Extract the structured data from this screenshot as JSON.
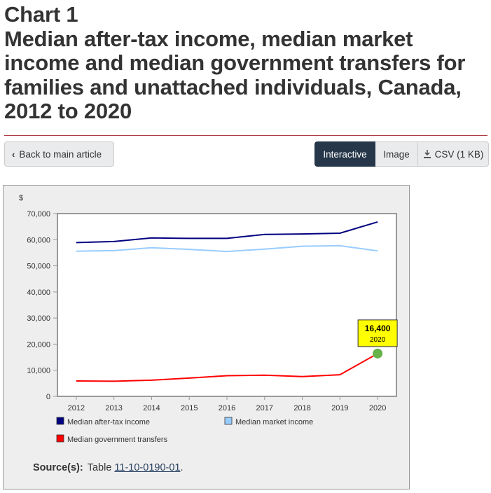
{
  "title": {
    "line1": "Chart 1",
    "line2": "Median after-tax income, median market income and median government transfers for families and unattached individuals, Canada, 2012 to 2020"
  },
  "nav": {
    "back_label": "Back to main article",
    "interactive_label": "Interactive",
    "image_label": "Image",
    "csv_label": "CSV (1 KB)"
  },
  "source": {
    "label": "Source(s):",
    "prefix": "Table ",
    "link_text": "11-10-0190-01",
    "suffix": "."
  },
  "chart_data": {
    "type": "line",
    "title": "",
    "xlabel": "",
    "ylabel": "$",
    "categories": [
      "2012",
      "2013",
      "2014",
      "2015",
      "2016",
      "2017",
      "2018",
      "2019",
      "2020"
    ],
    "ylim": [
      0,
      70000
    ],
    "yticks": [
      0,
      10000,
      20000,
      30000,
      40000,
      50000,
      60000,
      70000
    ],
    "ytick_labels": [
      "0",
      "10,000",
      "20,000",
      "30,000",
      "40,000",
      "50,000",
      "60,000",
      "70,000"
    ],
    "series": [
      {
        "name": "Median after-tax income",
        "color": "#000080",
        "values": [
          58900,
          59300,
          60700,
          60500,
          60500,
          62000,
          62200,
          62500,
          66800
        ]
      },
      {
        "name": "Median market income",
        "color": "#99ccff",
        "values": [
          55600,
          55800,
          56900,
          56300,
          55500,
          56400,
          57500,
          57700,
          55700
        ]
      },
      {
        "name": "Median government transfers",
        "color": "#ff0000",
        "values": [
          5900,
          5800,
          6200,
          7000,
          7900,
          8100,
          7600,
          8300,
          16400
        ]
      }
    ],
    "tooltip": {
      "value": "16,400",
      "year": "2020",
      "color": "#ffff00",
      "marker_color": "#66b34a"
    },
    "legend_position": "bottom"
  }
}
